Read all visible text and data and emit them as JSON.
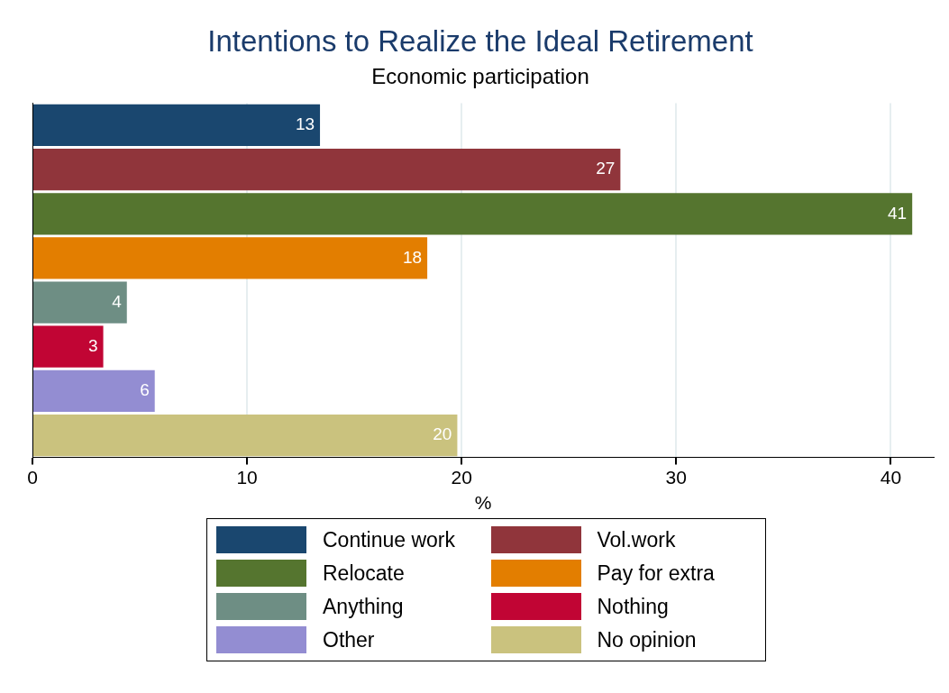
{
  "chart_data": {
    "type": "bar",
    "orientation": "horizontal",
    "title": "Intentions to Realize the Ideal Retirement",
    "subtitle": "Economic participation",
    "xlabel": "%",
    "categories": [
      null,
      null,
      null,
      null,
      null,
      null,
      null,
      null
    ],
    "series": [
      {
        "name": "Continue work",
        "color": "#1a476f",
        "values": [
          13.4,
          null,
          null,
          null,
          null,
          null,
          null,
          null
        ],
        "value_labels": [
          "13",
          null,
          null,
          null,
          null,
          null,
          null,
          null
        ]
      },
      {
        "name": "Vol.work",
        "color": "#90353b",
        "values": [
          null,
          27.4,
          null,
          null,
          null,
          null,
          null,
          null
        ],
        "value_labels": [
          null,
          "27",
          null,
          null,
          null,
          null,
          null,
          null
        ]
      },
      {
        "name": "Relocate",
        "color": "#55752f",
        "values": [
          null,
          null,
          41.0,
          null,
          null,
          null,
          null,
          null
        ],
        "value_labels": [
          null,
          null,
          "41",
          null,
          null,
          null,
          null,
          null
        ]
      },
      {
        "name": "Pay for extra",
        "color": "#e37e00",
        "values": [
          null,
          null,
          null,
          18.4,
          null,
          null,
          null,
          null
        ],
        "value_labels": [
          null,
          null,
          null,
          "18",
          null,
          null,
          null,
          null
        ]
      },
      {
        "name": "Anything",
        "color": "#6e8e84",
        "values": [
          null,
          null,
          null,
          null,
          4.4,
          null,
          null,
          null
        ],
        "value_labels": [
          null,
          null,
          null,
          null,
          "4",
          null,
          null,
          null
        ]
      },
      {
        "name": "Nothing",
        "color": "#c10534",
        "values": [
          null,
          null,
          null,
          null,
          null,
          3.3,
          null,
          null
        ],
        "value_labels": [
          null,
          null,
          null,
          null,
          null,
          "3",
          null,
          null
        ]
      },
      {
        "name": "Other",
        "color": "#938dd2",
        "values": [
          null,
          null,
          null,
          null,
          null,
          null,
          5.7,
          null
        ],
        "value_labels": [
          null,
          null,
          null,
          null,
          null,
          null,
          "6",
          null
        ]
      },
      {
        "name": "No opinion",
        "color": "#cac27e",
        "values": [
          null,
          null,
          null,
          null,
          null,
          null,
          null,
          19.8
        ],
        "value_labels": [
          null,
          null,
          null,
          null,
          null,
          null,
          null,
          "20"
        ]
      }
    ],
    "xlim": [
      0,
      42
    ],
    "xticks": [
      0,
      10,
      20,
      30,
      40
    ],
    "grid": "x",
    "legend": "bottom"
  }
}
